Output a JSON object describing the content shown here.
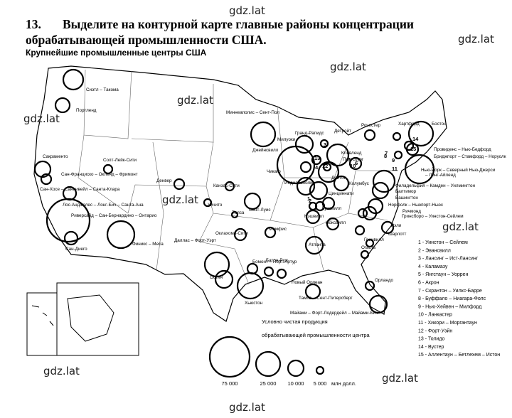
{
  "header": {
    "number": "13.",
    "title_line1": "Выделите на контурной карте главные районы концентрации",
    "title_line2": "обрабатывающей промышленности США."
  },
  "map": {
    "title": "Крупнейшие промышленные центры США",
    "cities": [
      "Сиэтл – Такома",
      "Портленд",
      "Миннеаполис – Сент-Пол",
      "Милуоки",
      "Гранд-Рапидс",
      "Детройт",
      "Рочестер",
      "Хартфорд",
      "Бостон",
      "Джейнсвилл",
      "Кливленд",
      "Питтсбург",
      "Провиденс – Нью-Бедфорд",
      "Бриджпорт – Стамфорд – Норуолк",
      "Сакраменто",
      "Солт-Лейк-Сити",
      "Чикаго",
      "Колумбус",
      "Дейтон",
      "Нью-Йорк – Северный Нью-Джерси",
      "– Лонг-Айленд",
      "Сан-Франциско – Окленд – Фримонт",
      "Денвер",
      "Канзас-Сити",
      "Индианаполис",
      "Цинциннати",
      "Филадельфия – Камден – Уилмингтон",
      "Балтимор",
      "Вашингтон",
      "Сан-Хосе – Саннивейл – Санта-Клара",
      "Уичито",
      "Сент-Луис",
      "Луисвилл",
      "Норфолк – Ньюпорт-Ньюс",
      "Лос-Анджелес – Лонг-Бич – Санта-Ана",
      "Талса",
      "Нэшвилл",
      "Ноксвилл",
      "Гринсборо – Уинстон-Сейлем",
      "Ричмонд",
      "Риверсайд – Сан-Бернардино – Онтарио",
      "Оклахома-Сити",
      "Рэли",
      "Шарлотт",
      "Мемфис",
      "Даллас – Форт-Уэрт",
      "Финикс – Меса",
      "Гринвилл",
      "Атланта",
      "Сан-Диего",
      "Огаста",
      "Бомонт – Порт-Артур",
      "Батон-Руж",
      "Остин",
      "Новый Орлеан",
      "Орландо",
      "Хьюстон",
      "Тампа – Сент-Питерсберг",
      "Майами – Форт-Лодердейл – Майами-Бич"
    ],
    "circle_numbers": [
      "14",
      "15",
      "9",
      "3",
      "12",
      "10",
      "8",
      "13",
      "7",
      "11",
      "1",
      "2",
      "4",
      "5",
      "6"
    ],
    "key": [
      "1 - Уинстон – Сейлем",
      "2 - Эвансвилл",
      "3 - Лансинг – Ист-Лансинг",
      "4 - Каламазу",
      "5 - Янгстаун – Уоррен",
      "6 - Акрон",
      "7 - Скрантон – Уилкс-Барре",
      "8 - Буффало – Ниагара-Фолс",
      "9 - Нью-Хейвен – Милфорд",
      "10 - Ланкастер",
      "11 - Хикори – Моргантаун",
      "12 - Форт-Уэйн",
      "13 - Толидо",
      "14 - Вустер",
      "15 - Аллентаун – Бетлехем – Истон"
    ],
    "size_legend": {
      "title_line1": "Условно чистая продукция",
      "title_line2": "обрабатывающей промышленности центра",
      "values": [
        "75 000",
        "25 000",
        "10 000",
        "5 000"
      ],
      "unit": "млн долл."
    }
  },
  "watermarks": [
    "gdz.lat",
    "gdz.lat",
    "gdz.lat",
    "gdz.lat",
    "gdz.lat",
    "gdz.lat",
    "gdz.lat",
    "gdz.lat",
    "gdz.lat",
    "gdz.lat"
  ]
}
